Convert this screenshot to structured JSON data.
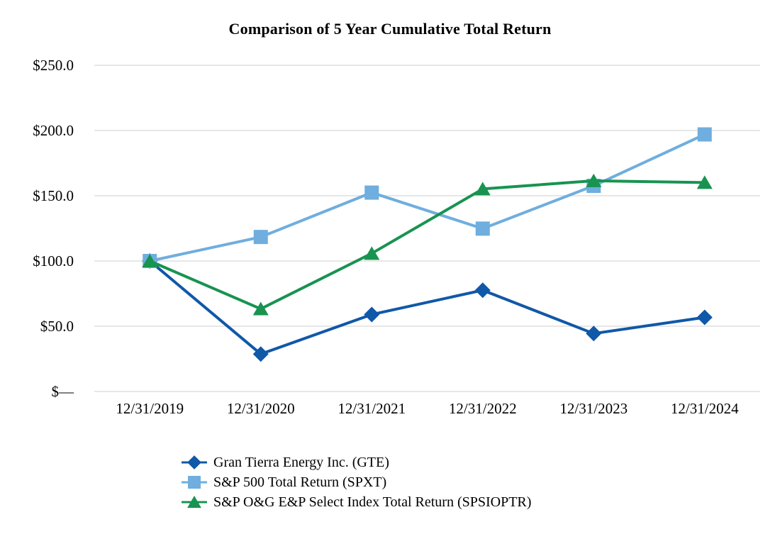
{
  "title": "Comparison of 5 Year Cumulative Total Return",
  "colors": {
    "gte": "#1058A8",
    "spxt": "#6FAEDE",
    "spsioptr": "#189350",
    "gridline": "#E7E7E7",
    "text": "#000000",
    "background": "#FFFFFF"
  },
  "chart_data": {
    "type": "line",
    "title": "Comparison of 5 Year Cumulative Total Return",
    "categories": [
      "12/31/2019",
      "12/31/2020",
      "12/31/2021",
      "12/31/2022",
      "12/31/2023",
      "12/31/2024"
    ],
    "series": [
      {
        "name": "Gran Tierra Energy Inc. (GTE)",
        "marker": "diamond",
        "color": "#1058A8",
        "values": [
          100.0,
          28.7,
          59.0,
          77.6,
          44.4,
          56.8
        ]
      },
      {
        "name": "S&P 500 Total Return (SPXT)",
        "marker": "square",
        "color": "#6FAEDE",
        "values": [
          100.0,
          118.4,
          152.4,
          124.8,
          157.6,
          197.0
        ]
      },
      {
        "name": "S&P O&G E&P Select Index Total Return (SPSIOPTR)",
        "marker": "triangle",
        "color": "#189350",
        "values": [
          100.0,
          63.3,
          105.8,
          155.2,
          161.5,
          160.1
        ]
      }
    ],
    "y_ticks": [
      {
        "label": "$250.0",
        "value": 250
      },
      {
        "label": "$200.0",
        "value": 200
      },
      {
        "label": "$150.0",
        "value": 150
      },
      {
        "label": "$100.0",
        "value": 100
      },
      {
        "label": "$50.0",
        "value": 50
      },
      {
        "label": "$—",
        "value": 0
      }
    ],
    "ylim": [
      0,
      250
    ],
    "xlabel": "",
    "ylabel": "",
    "grid": true,
    "legend_position": "bottom-left"
  }
}
